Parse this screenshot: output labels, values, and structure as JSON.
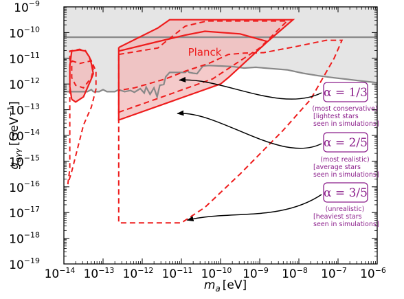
{
  "chart_data": {
    "type": "area",
    "xlabel_symbol": "m",
    "xlabel_sub": "a",
    "xlabel_unit": "[eV]",
    "ylabel_symbol": "g",
    "ylabel_sub": "aγγ",
    "ylabel_unit_open": "[GeV",
    "ylabel_unit_exp": "−1",
    "ylabel_unit_close": "]",
    "xscale": "log",
    "yscale": "log",
    "xlim_exp": [
      -14,
      -6
    ],
    "ylim_exp": [
      -19,
      -9
    ],
    "x_ticks": [
      {
        "exp": "-14",
        "label": "10",
        "sup": "−14"
      },
      {
        "exp": "-13",
        "label": "10",
        "sup": "−13"
      },
      {
        "exp": "-12",
        "label": "10",
        "sup": "−12"
      },
      {
        "exp": "-11",
        "label": "10",
        "sup": "−11"
      },
      {
        "exp": "-10",
        "label": "10",
        "sup": "−10"
      },
      {
        "exp": "-9",
        "label": "10",
        "sup": "−9"
      },
      {
        "exp": "-8",
        "label": "10",
        "sup": "−8"
      },
      {
        "exp": "-7",
        "label": "10",
        "sup": "−7"
      },
      {
        "exp": "-6",
        "label": "10",
        "sup": "−6"
      }
    ],
    "y_ticks": [
      {
        "exp": "-9",
        "label": "10",
        "sup": "−9"
      },
      {
        "exp": "-10",
        "label": "10",
        "sup": "−10"
      },
      {
        "exp": "-11",
        "label": "10",
        "sup": "−11"
      },
      {
        "exp": "-12",
        "label": "10",
        "sup": "−12"
      },
      {
        "exp": "-13",
        "label": "10",
        "sup": "−13"
      },
      {
        "exp": "-14",
        "label": "10",
        "sup": "−14"
      },
      {
        "exp": "-15",
        "label": "10",
        "sup": "−15"
      },
      {
        "exp": "-16",
        "label": "10",
        "sup": "−16"
      },
      {
        "exp": "-17",
        "label": "10",
        "sup": "−17"
      },
      {
        "exp": "-18",
        "label": "10",
        "sup": "−18"
      },
      {
        "exp": "-19",
        "label": "10",
        "sup": "−19"
      }
    ],
    "colors": {
      "excluded_fill": "#e5e5e5",
      "boundary": "#888888",
      "planck": "#ee1c1c",
      "planck_fill": "#f2b8b8",
      "annotation": "#8b1e8b"
    },
    "excluded_boundary_log": [
      [
        -14.0,
        -12.3
      ],
      [
        -13.4,
        -12.3
      ],
      [
        -13.3,
        -12.22
      ],
      [
        -13.25,
        -12.3
      ],
      [
        -13.1,
        -12.3
      ],
      [
        -13.0,
        -12.22
      ],
      [
        -12.9,
        -12.3
      ],
      [
        -12.7,
        -12.3
      ],
      [
        -12.6,
        -12.22
      ],
      [
        -12.45,
        -12.3
      ],
      [
        -12.3,
        -12.25
      ],
      [
        -12.2,
        -12.32
      ],
      [
        -12.05,
        -12.18
      ],
      [
        -11.95,
        -12.35
      ],
      [
        -11.9,
        -12.12
      ],
      [
        -11.8,
        -12.4
      ],
      [
        -11.7,
        -12.15
      ],
      [
        -11.62,
        -12.5
      ],
      [
        -11.55,
        -12.05
      ],
      [
        -11.45,
        -12.02
      ],
      [
        -11.4,
        -11.72
      ],
      [
        -11.3,
        -11.55
      ],
      [
        -11.1,
        -11.55
      ],
      [
        -10.9,
        -11.55
      ],
      [
        -10.85,
        -11.48
      ],
      [
        -10.8,
        -11.55
      ],
      [
        -10.7,
        -11.58
      ],
      [
        -10.6,
        -11.6
      ],
      [
        -10.45,
        -11.3
      ],
      [
        -10.3,
        -11.28
      ],
      [
        -10.0,
        -11.3
      ],
      [
        -9.7,
        -11.32
      ],
      [
        -9.4,
        -11.38
      ],
      [
        -9.1,
        -11.35
      ],
      [
        -8.7,
        -11.4
      ],
      [
        -8.3,
        -11.45
      ],
      [
        -7.9,
        -11.58
      ],
      [
        -7.5,
        -11.68
      ],
      [
        -7.1,
        -11.76
      ],
      [
        -6.7,
        -11.83
      ],
      [
        -6.3,
        -11.9
      ],
      [
        -6.0,
        -11.95
      ]
    ],
    "cast_limit_log": -10.18,
    "planck": {
      "label": "Planck",
      "left_loop_solid": [
        [
          -13.8,
          -12.6
        ],
        [
          -13.85,
          -12.1
        ],
        [
          -13.85,
          -11.3
        ],
        [
          -13.8,
          -10.72
        ],
        [
          -13.6,
          -10.67
        ],
        [
          -13.45,
          -10.72
        ],
        [
          -13.35,
          -10.95
        ],
        [
          -13.3,
          -11.2
        ],
        [
          -13.25,
          -11.6
        ],
        [
          -13.3,
          -11.8
        ],
        [
          -13.5,
          -12.5
        ],
        [
          -13.7,
          -12.7
        ],
        [
          -13.8,
          -12.6
        ]
      ],
      "left_dashed_outer": [
        [
          -13.9,
          -15.9
        ],
        [
          -13.85,
          -15.3
        ],
        [
          -13.85,
          -12.5
        ],
        [
          -13.85,
          -10.72
        ],
        [
          -13.6,
          -10.65
        ],
        [
          -13.45,
          -10.7
        ],
        [
          -13.3,
          -11.1
        ],
        [
          -13.18,
          -11.5
        ],
        [
          -13.18,
          -12.2
        ],
        [
          -13.3,
          -12.9
        ],
        [
          -13.5,
          -13.6
        ],
        [
          -13.8,
          -15.4
        ],
        [
          -13.9,
          -15.9
        ]
      ],
      "left_dashed_inner": [
        [
          -13.8,
          -11.1
        ],
        [
          -13.6,
          -11.2
        ],
        [
          -13.45,
          -11.15
        ],
        [
          -13.3,
          -11.1
        ],
        [
          -13.25,
          -11.45
        ],
        [
          -13.3,
          -11.75
        ],
        [
          -13.5,
          -12.15
        ],
        [
          -13.7,
          -12.05
        ],
        [
          -13.8,
          -11.75
        ],
        [
          -13.8,
          -11.1
        ]
      ],
      "solid_region": [
        [
          -12.6,
          -10.58
        ],
        [
          -11.6,
          -9.82
        ],
        [
          -11.3,
          -9.5
        ],
        [
          -9.3,
          -9.5
        ],
        [
          -8.15,
          -9.5
        ],
        [
          -8.8,
          -10.35
        ],
        [
          -9.8,
          -11.75
        ],
        [
          -10.0,
          -12.0
        ],
        [
          -12.6,
          -13.4
        ],
        [
          -12.6,
          -10.58
        ]
      ],
      "solid_mid": [
        [
          -12.6,
          -10.72
        ],
        [
          -11.6,
          -10.35
        ],
        [
          -10.9,
          -10.1
        ],
        [
          -10.4,
          -9.95
        ],
        [
          -9.5,
          -10.05
        ],
        [
          -8.8,
          -10.35
        ]
      ],
      "dashed_middle": [
        [
          -12.6,
          -10.85
        ],
        [
          -11.6,
          -10.6
        ],
        [
          -11.4,
          -10.35
        ],
        [
          -10.9,
          -9.75
        ],
        [
          -10.35,
          -9.55
        ],
        [
          -8.3,
          -9.55
        ],
        [
          -9.0,
          -10.6
        ],
        [
          -10.2,
          -11.8
        ],
        [
          -11.3,
          -12.4
        ],
        [
          -12.6,
          -13.1
        ]
      ],
      "dashed_outer": [
        [
          -12.6,
          -10.88
        ],
        [
          -12.6,
          -13.0
        ],
        [
          -12.6,
          -17.4
        ],
        [
          -11.0,
          -17.4
        ],
        [
          -10.4,
          -16.8
        ],
        [
          -9.5,
          -15.5
        ],
        [
          -8.4,
          -13.8
        ],
        [
          -7.7,
          -12.6
        ],
        [
          -7.1,
          -11.0
        ],
        [
          -6.9,
          -10.3
        ],
        [
          -7.3,
          -10.3
        ],
        [
          -8.1,
          -10.55
        ],
        [
          -8.9,
          -10.78
        ],
        [
          -9.4,
          -10.8
        ],
        [
          -9.8,
          -10.85
        ],
        [
          -10.3,
          -11.2
        ],
        [
          -10.9,
          -11.5
        ],
        [
          -11.4,
          -11.8
        ],
        [
          -12.2,
          -12.15
        ],
        [
          -12.6,
          -12.25
        ]
      ]
    },
    "annotations": [
      {
        "alpha": "α = 1/3",
        "lines": [
          "(most conservative)",
          "[lightest stars",
          "seen in simulations]"
        ],
        "arrow_to_log": [
          -11.05,
          -11.85
        ]
      },
      {
        "alpha": "α = 2/5",
        "lines": [
          "(most realistic)",
          "[average stars",
          "seen in simulations]"
        ],
        "arrow_to_log": [
          -11.1,
          -13.15
        ]
      },
      {
        "alpha": "α = 3/5",
        "lines": [
          "(unrealistic)",
          "[heaviest stars",
          "seen in simulations]"
        ],
        "arrow_to_log": [
          -10.85,
          -17.3
        ]
      }
    ]
  }
}
